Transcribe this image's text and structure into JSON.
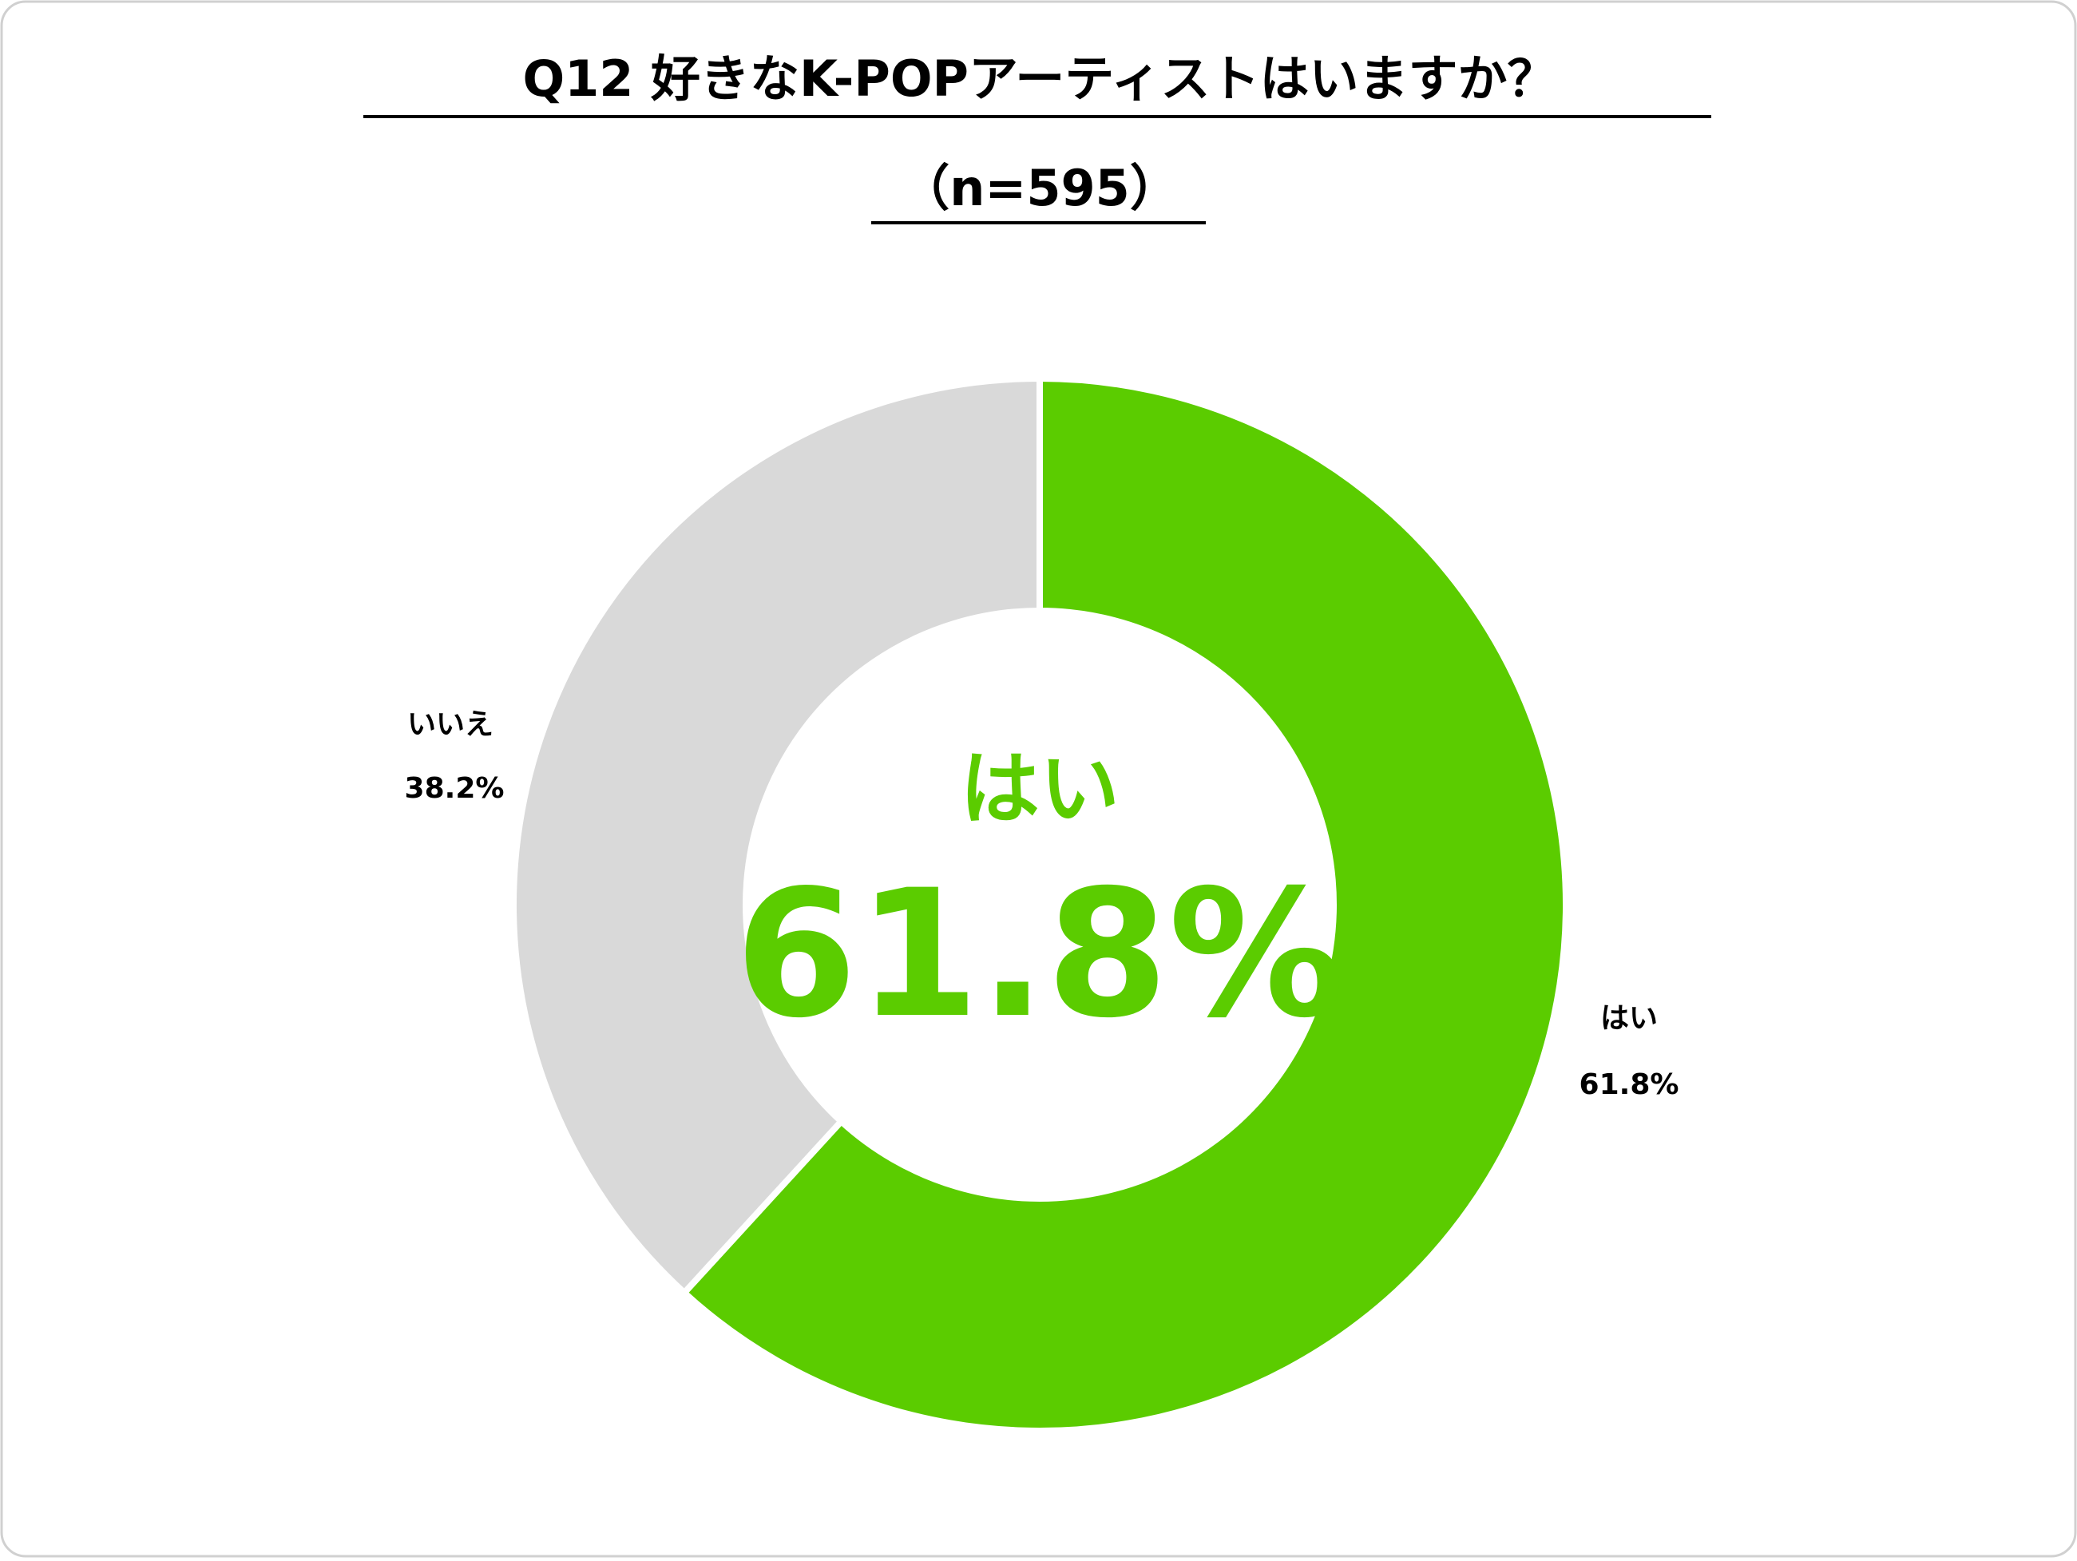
{
  "chart_data": {
    "type": "donut",
    "title": "Q12 好きなK-POPアーティストはいますか？",
    "subtitle": "（n=595）",
    "categories": [
      "はい",
      "いいえ"
    ],
    "values": [
      61.8,
      38.2
    ],
    "value_labels": [
      "61.8%",
      "38.2%"
    ],
    "colors": [
      "#5bcc00",
      "#d9d9d9"
    ]
  }
}
